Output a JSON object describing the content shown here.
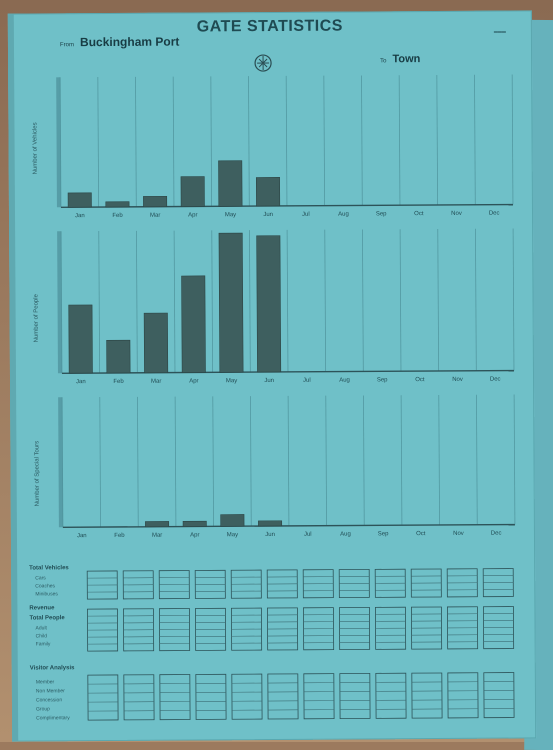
{
  "page": {
    "title": "GATE STATISTICS",
    "from_label": "From",
    "from_value": "Buckingham Port",
    "to_label": "To",
    "to_value": "Town"
  },
  "colors": {
    "paper": "#6fc0c8",
    "bar": "#3e5f5f",
    "grid": "#4c8f98",
    "text": "#1f4a52"
  },
  "months": [
    "Jan",
    "Feb",
    "Mar",
    "Apr",
    "May",
    "Jun",
    "Jul",
    "Aug",
    "Sep",
    "Oct",
    "Nov",
    "Dec"
  ],
  "chart_data": [
    {
      "type": "bar",
      "ylabel": "Number of Vehicles",
      "categories": [
        "Jan",
        "Feb",
        "Mar",
        "Apr",
        "May",
        "Jun",
        "Jul",
        "Aug",
        "Sep",
        "Oct",
        "Nov",
        "Dec"
      ],
      "values": [
        11,
        4,
        8,
        23,
        35,
        22,
        0,
        0,
        0,
        0,
        0,
        0
      ],
      "ylim": [
        0,
        100
      ]
    },
    {
      "type": "bar",
      "ylabel": "Number of People",
      "categories": [
        "Jan",
        "Feb",
        "Mar",
        "Apr",
        "May",
        "Jun",
        "Jul",
        "Aug",
        "Sep",
        "Oct",
        "Nov",
        "Dec"
      ],
      "values": [
        48,
        23,
        42,
        68,
        98,
        96,
        0,
        0,
        0,
        0,
        0,
        0
      ],
      "ylim": [
        0,
        100
      ]
    },
    {
      "type": "bar",
      "ylabel": "Number of Special Tours",
      "categories": [
        "Jan",
        "Feb",
        "Mar",
        "Apr",
        "May",
        "Jun",
        "Jul",
        "Aug",
        "Sep",
        "Oct",
        "Nov",
        "Dec"
      ],
      "values": [
        0,
        0,
        4,
        4,
        9,
        4,
        0,
        0,
        0,
        0,
        0,
        0
      ],
      "ylim": [
        0,
        100
      ]
    }
  ],
  "tables": {
    "block1": {
      "label": "Total Vehicles",
      "rows": [
        "Cars",
        "Coaches",
        "Minibuses"
      ]
    },
    "block2": {
      "label1": "Revenue",
      "label2": "Total People",
      "rows": [
        "Adult",
        "Child",
        "Family"
      ]
    },
    "block3": {
      "label": "Visitor Analysis",
      "rows": [
        "Member",
        "Non Member",
        "Concession",
        "Group",
        "Complimentary"
      ]
    }
  }
}
